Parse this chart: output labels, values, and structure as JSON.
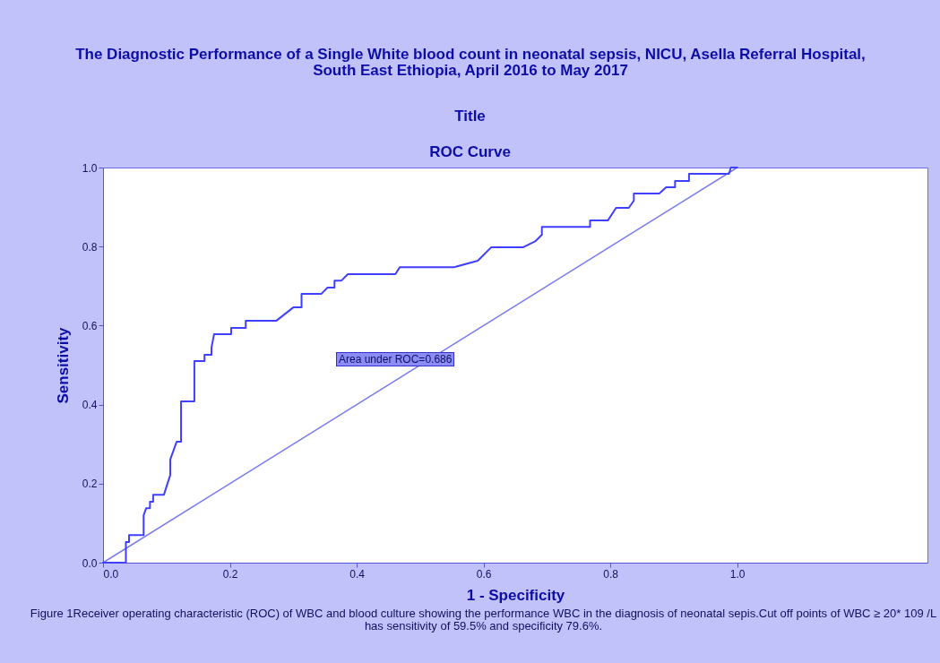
{
  "chart_data": {
    "type": "line",
    "title": "The Diagnostic Performance of a Single White blood count in neonatal sepsis, NICU, Asella Referral Hospital, South East Ethiopia, April 2016 to May 2017",
    "subtitle": "ROC Curve",
    "xlabel": "1 - Specificity",
    "ylabel": "Sensitivity",
    "xlim": [
      0,
      1.3
    ],
    "xticks": [
      {
        "value": 0,
        "label": "0.0"
      },
      0.2,
      0.4,
      0.6,
      0.8,
      {
        "value": 1,
        "label": "1.0"
      }
    ],
    "ylim": [
      0,
      1
    ],
    "yticks": [
      {
        "value": 0,
        "label": "0.0"
      },
      0.2,
      0.4,
      0.6,
      0.8,
      {
        "value": 1,
        "label": "1.0"
      }
    ],
    "annotations": [
      "Title",
      "Area  under ROC=0.686",
      "Figure 1Receiver operating characteristic (ROC) of WBC and blood culture showing the performance WBC in the diagnosis of neonatal sepis.Cut off points of WBC ≥ 20* 109 /L has sensitivity of 59.5% and specificity 79.6%."
    ],
    "series": [
      {
        "type": "step",
        "color": "#3f3fff",
        "x": [
          0,
          0.036,
          0.036,
          0.041,
          0.041,
          0.064,
          0.064,
          0.068,
          0.074,
          0.074,
          0.079,
          0.079,
          0.096,
          0.106,
          0.106,
          0.116,
          0.123,
          0.123,
          0.144,
          0.144,
          0.16,
          0.16,
          0.171,
          0.171,
          0.175,
          0.202,
          0.202,
          0.225,
          0.225,
          0.273,
          0.3,
          0.313,
          0.313,
          0.344,
          0.354,
          0.365,
          0.365,
          0.376,
          0.386,
          0.461,
          0.468,
          0.554,
          0.591,
          0.612,
          0.662,
          0.682,
          0.692,
          0.692,
          0.768,
          0.768,
          0.796,
          0.809,
          0.829,
          0.837,
          0.837,
          0.877,
          0.888,
          0.902,
          0.902,
          0.924,
          0.924,
          0.987,
          0.99,
          1
        ],
        "values": [
          0,
          0,
          0.052,
          0.052,
          0.07,
          0.07,
          0.12,
          0.138,
          0.138,
          0.154,
          0.154,
          0.172,
          0.172,
          0.222,
          0.261,
          0.306,
          0.306,
          0.408,
          0.408,
          0.51,
          0.51,
          0.526,
          0.526,
          0.544,
          0.578,
          0.578,
          0.594,
          0.594,
          0.612,
          0.612,
          0.646,
          0.646,
          0.68,
          0.68,
          0.696,
          0.696,
          0.714,
          0.714,
          0.73,
          0.73,
          0.748,
          0.748,
          0.764,
          0.798,
          0.798,
          0.814,
          0.83,
          0.85,
          0.85,
          0.866,
          0.866,
          0.898,
          0.898,
          0.916,
          0.934,
          0.934,
          0.95,
          0.95,
          0.966,
          0.966,
          0.984,
          0.984,
          1,
          1
        ]
      },
      {
        "type": "line",
        "color": "#7b7bef",
        "x": [
          0,
          1
        ],
        "values": [
          0,
          1
        ]
      }
    ]
  }
}
